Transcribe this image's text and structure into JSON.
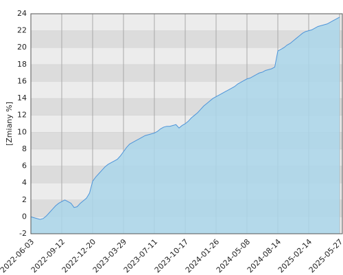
{
  "chart_data": {
    "type": "area",
    "y_label": "[Zmiany %]",
    "categories": [
      "2022-06-03",
      null,
      null,
      null,
      null,
      null,
      null,
      null,
      null,
      null,
      "2022-09-12",
      null,
      null,
      null,
      null,
      null,
      null,
      null,
      null,
      null,
      "2022-12-20",
      null,
      null,
      null,
      null,
      null,
      null,
      null,
      null,
      null,
      "2023-03-29",
      null,
      null,
      null,
      null,
      null,
      null,
      null,
      null,
      null,
      "2023-07-11",
      null,
      null,
      null,
      null,
      null,
      null,
      null,
      null,
      null,
      "2023-10-17",
      null,
      null,
      null,
      null,
      null,
      null,
      null,
      null,
      null,
      "2024-01-26",
      null,
      null,
      null,
      null,
      null,
      null,
      null,
      null,
      null,
      "2024-05-08",
      null,
      null,
      null,
      null,
      null,
      null,
      null,
      null,
      null,
      "2024-08-14",
      null,
      null,
      null,
      null,
      null,
      null,
      null,
      null,
      null,
      "2025-02-14",
      null,
      null,
      null,
      null,
      null,
      null,
      null,
      null,
      null,
      "2025-05-27"
    ],
    "values": [
      0,
      -0.1,
      -0.2,
      -0.3,
      -0.2,
      0.1,
      0.5,
      0.9,
      1.3,
      1.6,
      1.8,
      2.0,
      1.8,
      1.6,
      1.1,
      1.2,
      1.6,
      1.9,
      2.2,
      2.8,
      4.2,
      4.7,
      5.1,
      5.5,
      5.9,
      6.2,
      6.4,
      6.6,
      6.8,
      7.2,
      7.7,
      8.2,
      8.6,
      8.8,
      9.0,
      9.2,
      9.4,
      9.6,
      9.7,
      9.8,
      9.9,
      10.1,
      10.4,
      10.6,
      10.7,
      10.7,
      10.8,
      10.9,
      10.5,
      10.8,
      11.0,
      11.3,
      11.7,
      12.0,
      12.3,
      12.7,
      13.1,
      13.4,
      13.7,
      14.0,
      14.2,
      14.4,
      14.6,
      14.8,
      15.0,
      15.2,
      15.4,
      15.7,
      15.9,
      16.1,
      16.3,
      16.4,
      16.6,
      16.8,
      17.0,
      17.1,
      17.3,
      17.4,
      17.5,
      17.7,
      19.6,
      19.8,
      20.0,
      20.3,
      20.5,
      20.8,
      21.1,
      21.4,
      21.7,
      21.9,
      22.0,
      22.1,
      22.3,
      22.5,
      22.6,
      22.7,
      22.8,
      23.0,
      23.2,
      23.4,
      23.6
    ],
    "color": "#4d94d9",
    "fill_color": "#aad6ea",
    "ylim": [
      -2,
      24
    ],
    "yticks": [
      -2,
      0,
      2,
      4,
      6,
      8,
      10,
      12,
      14,
      16,
      18,
      20,
      22,
      24
    ],
    "grid": true
  }
}
